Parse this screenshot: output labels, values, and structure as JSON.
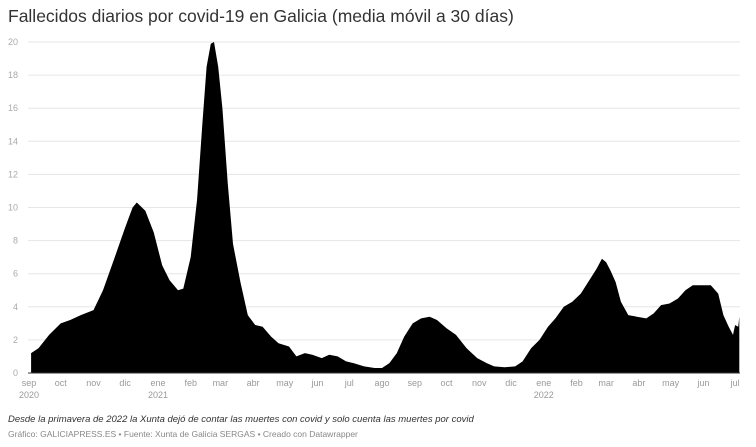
{
  "chart_data": {
    "type": "area",
    "title": "Fallecidos diarios por covid-19 en Galicia (media móvil a 30 días)",
    "xlabel": "",
    "ylabel": "",
    "ylim": [
      0,
      20
    ],
    "xlim": [
      "2020-09-01",
      "2022-07-05"
    ],
    "yticks": [
      0,
      2,
      4,
      6,
      8,
      10,
      12,
      14,
      16,
      18,
      20
    ],
    "xticks": [
      {
        "date": "2020-09-01",
        "label": "sep",
        "year": "2020"
      },
      {
        "date": "2020-10-01",
        "label": "oct"
      },
      {
        "date": "2020-11-01",
        "label": "nov"
      },
      {
        "date": "2020-12-01",
        "label": "dic"
      },
      {
        "date": "2021-01-01",
        "label": "ene",
        "year": "2021"
      },
      {
        "date": "2021-02-01",
        "label": "feb"
      },
      {
        "date": "2021-03-01",
        "label": "mar"
      },
      {
        "date": "2021-04-01",
        "label": "abr"
      },
      {
        "date": "2021-05-01",
        "label": "may"
      },
      {
        "date": "2021-06-01",
        "label": "jun"
      },
      {
        "date": "2021-07-01",
        "label": "jul"
      },
      {
        "date": "2021-08-01",
        "label": "ago"
      },
      {
        "date": "2021-09-01",
        "label": "sep"
      },
      {
        "date": "2021-10-01",
        "label": "oct"
      },
      {
        "date": "2021-11-01",
        "label": "nov"
      },
      {
        "date": "2021-12-01",
        "label": "dic"
      },
      {
        "date": "2022-01-01",
        "label": "ene",
        "year": "2022"
      },
      {
        "date": "2022-02-01",
        "label": "feb"
      },
      {
        "date": "2022-03-01",
        "label": "mar"
      },
      {
        "date": "2022-04-01",
        "label": "abr"
      },
      {
        "date": "2022-05-01",
        "label": "may"
      },
      {
        "date": "2022-06-01",
        "label": "jun"
      },
      {
        "date": "2022-07-01",
        "label": "jul"
      }
    ],
    "grid": true,
    "fill_color": "#000000",
    "gridline_color": "#e6e6e6",
    "series": [
      {
        "x": [
          "2020-09-03",
          "2020-09-10",
          "2020-09-20",
          "2020-10-01",
          "2020-10-10",
          "2020-10-20",
          "2020-11-01",
          "2020-11-10",
          "2020-11-20",
          "2020-12-01",
          "2020-12-08",
          "2020-12-12",
          "2020-12-20",
          "2020-12-28",
          "2021-01-05",
          "2021-01-12",
          "2021-01-20",
          "2021-01-25",
          "2021-02-01",
          "2021-02-07",
          "2021-02-12",
          "2021-02-16",
          "2021-02-20",
          "2021-02-23",
          "2021-02-27",
          "2021-03-03",
          "2021-03-08",
          "2021-03-13",
          "2021-03-20",
          "2021-03-27",
          "2021-04-03",
          "2021-04-10",
          "2021-04-18",
          "2021-04-25",
          "2021-05-05",
          "2021-05-12",
          "2021-05-20",
          "2021-05-27",
          "2021-06-05",
          "2021-06-12",
          "2021-06-20",
          "2021-06-28",
          "2021-07-05",
          "2021-07-15",
          "2021-07-25",
          "2021-08-01",
          "2021-08-08",
          "2021-08-15",
          "2021-08-22",
          "2021-08-30",
          "2021-09-07",
          "2021-09-15",
          "2021-09-22",
          "2021-10-01",
          "2021-10-10",
          "2021-10-20",
          "2021-10-30",
          "2021-11-08",
          "2021-11-15",
          "2021-11-25",
          "2021-12-05",
          "2021-12-12",
          "2021-12-20",
          "2021-12-28",
          "2022-01-05",
          "2022-01-12",
          "2022-01-20",
          "2022-01-28",
          "2022-02-05",
          "2022-02-12",
          "2022-02-20",
          "2022-02-25",
          "2022-03-01",
          "2022-03-05",
          "2022-03-10",
          "2022-03-15",
          "2022-03-22",
          "2022-03-30",
          "2022-04-08",
          "2022-04-15",
          "2022-04-22",
          "2022-04-30",
          "2022-05-08",
          "2022-05-15",
          "2022-05-22",
          "2022-05-30",
          "2022-06-08",
          "2022-06-15",
          "2022-06-20",
          "2022-06-25",
          "2022-06-29",
          "2022-07-01",
          "2022-07-04",
          "2022-07-05"
        ],
        "values": [
          1.2,
          1.5,
          2.3,
          3.0,
          3.2,
          3.5,
          3.8,
          5.0,
          6.8,
          8.8,
          10.0,
          10.3,
          9.8,
          8.5,
          6.5,
          5.6,
          5.0,
          5.1,
          7.0,
          10.5,
          15.0,
          18.5,
          19.9,
          20.0,
          18.5,
          16.0,
          11.5,
          7.8,
          5.5,
          3.5,
          2.9,
          2.8,
          2.2,
          1.8,
          1.6,
          1.0,
          1.2,
          1.1,
          0.9,
          1.1,
          1.0,
          0.7,
          0.6,
          0.4,
          0.3,
          0.3,
          0.6,
          1.2,
          2.2,
          3.0,
          3.3,
          3.4,
          3.2,
          2.7,
          2.3,
          1.5,
          0.9,
          0.6,
          0.4,
          0.35,
          0.4,
          0.7,
          1.5,
          2.0,
          2.8,
          3.3,
          4.0,
          4.3,
          4.8,
          5.5,
          6.3,
          6.9,
          6.7,
          6.2,
          5.5,
          4.3,
          3.5,
          3.4,
          3.3,
          3.6,
          4.1,
          4.2,
          4.5,
          5.0,
          5.3,
          5.3,
          5.3,
          4.8,
          3.5,
          2.8,
          2.3,
          2.9,
          2.8,
          3.4
        ]
      }
    ]
  },
  "footer": {
    "note": "Desde la primavera de 2022 la Xunta dejó de contar las muertes con covid y solo cuenta las muertes por covid",
    "source": "Gráfico: GALICIAPRESS.ES • Fuente: Xunta de Galicia SERGAS • Creado con Datawrapper"
  }
}
